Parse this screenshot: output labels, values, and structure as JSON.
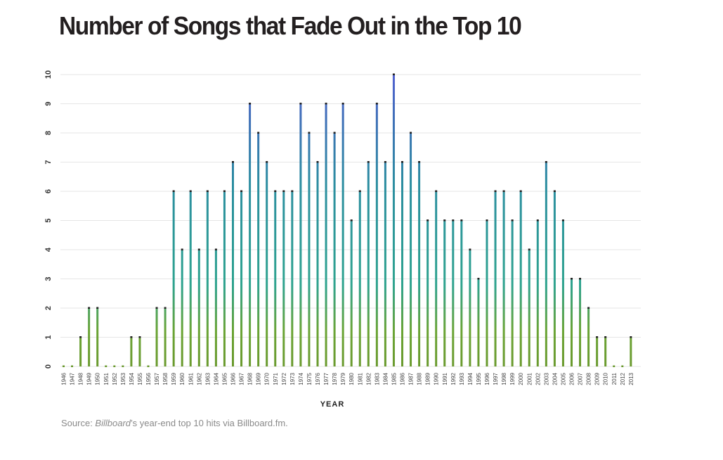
{
  "chart_data": {
    "type": "bar",
    "title": "Number of Songs that Fade Out in the Top 10",
    "xlabel": "YEAR",
    "ylabel": "",
    "ylim": [
      0,
      10
    ],
    "yticks": [
      0,
      1,
      2,
      3,
      4,
      5,
      6,
      7,
      8,
      9,
      10
    ],
    "grid": true,
    "categories": [
      "1946",
      "1947",
      "1948",
      "1949",
      "1950",
      "1951",
      "1952",
      "1953",
      "1954",
      "1955",
      "1956",
      "1957",
      "1958",
      "1959",
      "1960",
      "1961",
      "1962",
      "1963",
      "1964",
      "1965",
      "1966",
      "1967",
      "1968",
      "1969",
      "1970",
      "1971",
      "1972",
      "1973",
      "1974",
      "1975",
      "1976",
      "1977",
      "1978",
      "1979",
      "1980",
      "1981",
      "1982",
      "1983",
      "1984",
      "1985",
      "1986",
      "1987",
      "1988",
      "1989",
      "1990",
      "1991",
      "1992",
      "1993",
      "1994",
      "1995",
      "1996",
      "1997",
      "1998",
      "1999",
      "2000",
      "2001",
      "2002",
      "2003",
      "2004",
      "2005",
      "2006",
      "2007",
      "2008",
      "2009",
      "2010",
      "2011",
      "2012",
      "2013"
    ],
    "values": [
      0,
      0,
      1,
      2,
      2,
      0,
      0,
      0,
      1,
      1,
      0,
      2,
      2,
      6,
      4,
      6,
      4,
      6,
      4,
      6,
      7,
      6,
      9,
      8,
      7,
      6,
      6,
      6,
      9,
      8,
      7,
      9,
      8,
      9,
      5,
      6,
      7,
      9,
      7,
      10,
      7,
      8,
      7,
      5,
      6,
      5,
      5,
      5,
      4,
      3,
      5,
      6,
      6,
      5,
      6,
      4,
      5,
      7,
      6,
      5,
      3,
      3,
      2,
      1,
      1,
      0,
      0,
      1
    ],
    "colors": {
      "bottom": "#6a9a2e",
      "middle": "#2aa59a",
      "top": "#5060c8",
      "cap": "#222222"
    }
  },
  "source": {
    "prefix": "Source: ",
    "italic": "Billboard",
    "suffix": "’s year-end top 10 hits via Billboard.fm."
  }
}
